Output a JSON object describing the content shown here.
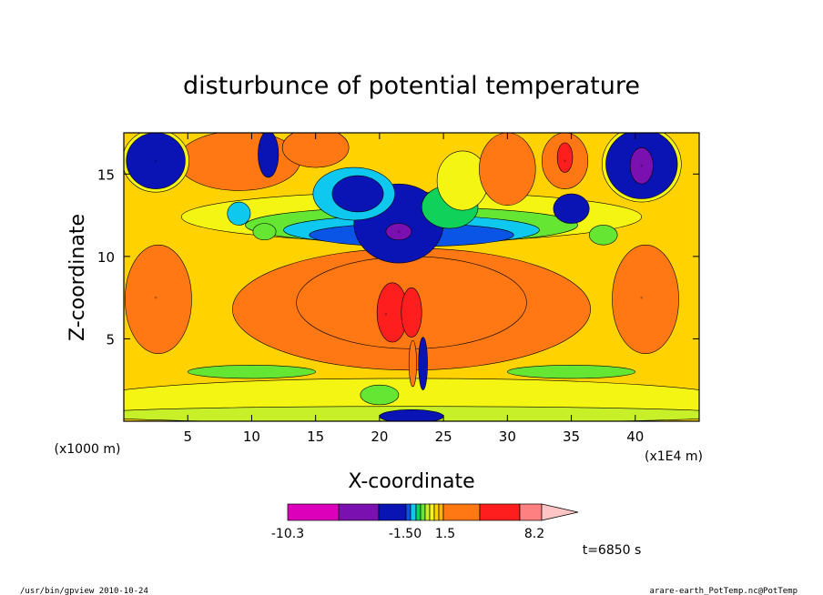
{
  "chart_data": {
    "type": "heatmap",
    "title": "disturbunce of potential temperature",
    "xlabel": "X-coordinate",
    "ylabel": "Z-coordinate",
    "x_unit": "(x1E4 m)",
    "y_unit": "(x1000 m)",
    "xlim": [
      0,
      45
    ],
    "ylim": [
      0,
      17.5
    ],
    "x_ticks": [
      5,
      10,
      15,
      20,
      25,
      30,
      35,
      40
    ],
    "y_ticks": [
      5,
      10,
      15
    ],
    "colorbar": {
      "label_min": "-10.3",
      "label_mid_neg": "-1.50",
      "label_mid_pos": "1.5",
      "label_max": "8.2",
      "colors": [
        "#dd00bb",
        "#7a10b0",
        "#0a14b4",
        "#0a55e6",
        "#0fc8f0",
        "#10d25a",
        "#64e632",
        "#c8f028",
        "#f5f514",
        "#ffd200",
        "#ffb400",
        "#ff7814",
        "#ff1e1e",
        "#ff8080",
        "#ffc4c4"
      ]
    },
    "features": [
      {
        "kind": "low",
        "x": 2.5,
        "z": 15.8,
        "value": -6
      },
      {
        "kind": "low",
        "x": 40.5,
        "z": 15.5,
        "value": -8
      },
      {
        "kind": "low",
        "x": 21.5,
        "z": 11.5,
        "value": -7
      },
      {
        "kind": "high",
        "x": 20.5,
        "z": 6.5,
        "value": 6
      },
      {
        "kind": "high",
        "x": 34.5,
        "z": 15.8,
        "value": 5
      },
      {
        "kind": "high",
        "x": 2.5,
        "z": 7.5,
        "value": 3
      },
      {
        "kind": "high",
        "x": 40.5,
        "z": 7.5,
        "value": 3
      }
    ],
    "grid": false
  },
  "annotations": {
    "time": "t=6850 s",
    "program": "/usr/bin/gpview  2010-10-24",
    "source": "arare-earth_PotTemp.nc@PotTemp"
  }
}
